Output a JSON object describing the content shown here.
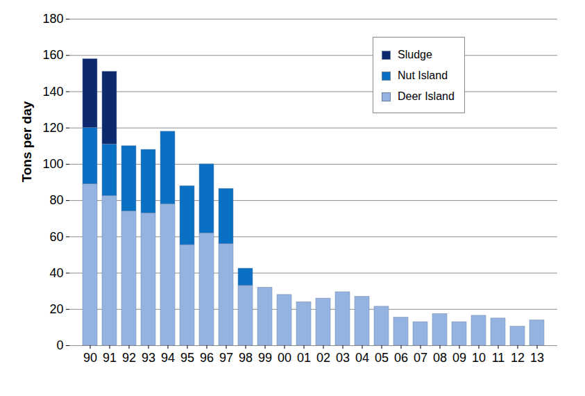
{
  "chart_data": {
    "type": "bar",
    "y_label": "Tons per day",
    "categories": [
      "90",
      "91",
      "92",
      "93",
      "94",
      "95",
      "96",
      "97",
      "98",
      "99",
      "00",
      "01",
      "02",
      "03",
      "04",
      "05",
      "06",
      "07",
      "08",
      "09",
      "10",
      "11",
      "12",
      "13"
    ],
    "series": [
      {
        "name": "Deer Island",
        "color": "#95b3e0",
        "values": [
          89,
          82.5,
          74,
          73,
          78,
          55.5,
          62,
          56,
          33,
          32,
          28,
          24,
          26,
          29.5,
          27,
          21.5,
          15.5,
          13,
          17.5,
          13,
          16.5,
          15,
          10.5,
          14
        ]
      },
      {
        "name": "Nut Island",
        "color": "#0a70c4",
        "values": [
          31,
          28.5,
          36,
          35,
          40,
          32.5,
          38,
          30.5,
          9.5,
          null,
          null,
          null,
          null,
          null,
          null,
          null,
          null,
          null,
          null,
          null,
          null,
          null,
          null,
          null
        ]
      },
      {
        "name": "Sludge",
        "color": "#0d2a6e",
        "values": [
          38,
          40,
          null,
          null,
          null,
          null,
          null,
          null,
          null,
          null,
          null,
          null,
          null,
          null,
          null,
          null,
          null,
          null,
          null,
          null,
          null,
          null,
          null,
          null
        ]
      }
    ],
    "ylim": [
      0,
      180
    ],
    "yticks": [
      0,
      20,
      40,
      60,
      80,
      100,
      120,
      140,
      160,
      180
    ],
    "stacked": true,
    "grid": true,
    "legend": "top-right"
  }
}
